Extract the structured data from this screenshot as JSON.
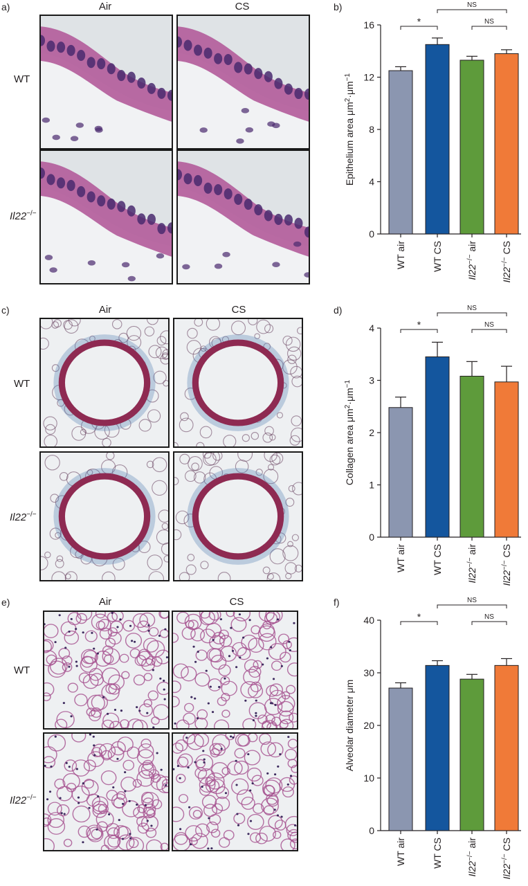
{
  "panel_labels": {
    "a": "a)",
    "b": "b)",
    "c": "c)",
    "d": "d)",
    "e": "e)",
    "f": "f)"
  },
  "columns": {
    "air": "Air",
    "cs": "CS"
  },
  "rows": {
    "wt": "WT",
    "ko_italic": "Il22",
    "ko_sup": "−/−"
  },
  "colors": {
    "wt_air": "#8b96b0",
    "wt_cs": "#14569e",
    "ko_air": "#5e9b3b",
    "ko_cs": "#f07a38",
    "he_bg": "#dfe3e6",
    "he_tissue": "#b25b9a",
    "he_nuclei": "#4a2a6e",
    "mt_bg": "#eef0f2",
    "mt_tissue": "#8e2a52",
    "mt_collagen": "#5b86b8"
  },
  "chart_data": [
    {
      "type": "bar",
      "ylabel_main": "Epithelium area μm",
      "ylabel_sup1": "2",
      "ylabel_mid": "·μm",
      "ylabel_sup2": "−1",
      "ylim": [
        0,
        16
      ],
      "yticks": [
        0,
        4,
        8,
        12,
        16
      ],
      "values": [
        12.5,
        14.5,
        13.3,
        13.8
      ],
      "errors": [
        0.3,
        0.5,
        0.3,
        0.3
      ],
      "significance": [
        {
          "from": 0,
          "to": 1,
          "label": "*"
        },
        {
          "from": 1,
          "to": 3,
          "label": "NS"
        },
        {
          "from": 2,
          "to": 3,
          "label": "NS"
        }
      ]
    },
    {
      "type": "bar",
      "ylabel_main": "Collagen area μm",
      "ylabel_sup1": "2",
      "ylabel_mid": "·μm",
      "ylabel_sup2": "−1",
      "ylim": [
        0,
        4
      ],
      "yticks": [
        0,
        1,
        2,
        3,
        4
      ],
      "values": [
        2.48,
        3.45,
        3.08,
        2.97
      ],
      "errors": [
        0.2,
        0.28,
        0.28,
        0.3
      ],
      "significance": [
        {
          "from": 0,
          "to": 1,
          "label": "*"
        },
        {
          "from": 1,
          "to": 3,
          "label": "NS"
        },
        {
          "from": 2,
          "to": 3,
          "label": "NS"
        }
      ]
    },
    {
      "type": "bar",
      "ylabel_main": "Alveolar diameter μm",
      "ylabel_sup1": "",
      "ylabel_mid": "",
      "ylabel_sup2": "",
      "ylim": [
        0,
        40
      ],
      "yticks": [
        0,
        10,
        20,
        30,
        40
      ],
      "values": [
        27.1,
        31.4,
        28.8,
        31.4
      ],
      "errors": [
        1.0,
        0.9,
        0.9,
        1.3
      ],
      "significance": [
        {
          "from": 0,
          "to": 1,
          "label": "*"
        },
        {
          "from": 1,
          "to": 3,
          "label": "NS"
        },
        {
          "from": 2,
          "to": 3,
          "label": "NS"
        }
      ]
    }
  ],
  "x_categories": [
    {
      "lead": "WT air",
      "ko": false,
      "tail": ""
    },
    {
      "lead": "WT CS",
      "ko": false,
      "tail": ""
    },
    {
      "lead": "Il22",
      "ko": true,
      "sup": "−/−",
      "tail": " air"
    },
    {
      "lead": "Il22",
      "ko": true,
      "sup": "−/−",
      "tail": " CS"
    }
  ]
}
